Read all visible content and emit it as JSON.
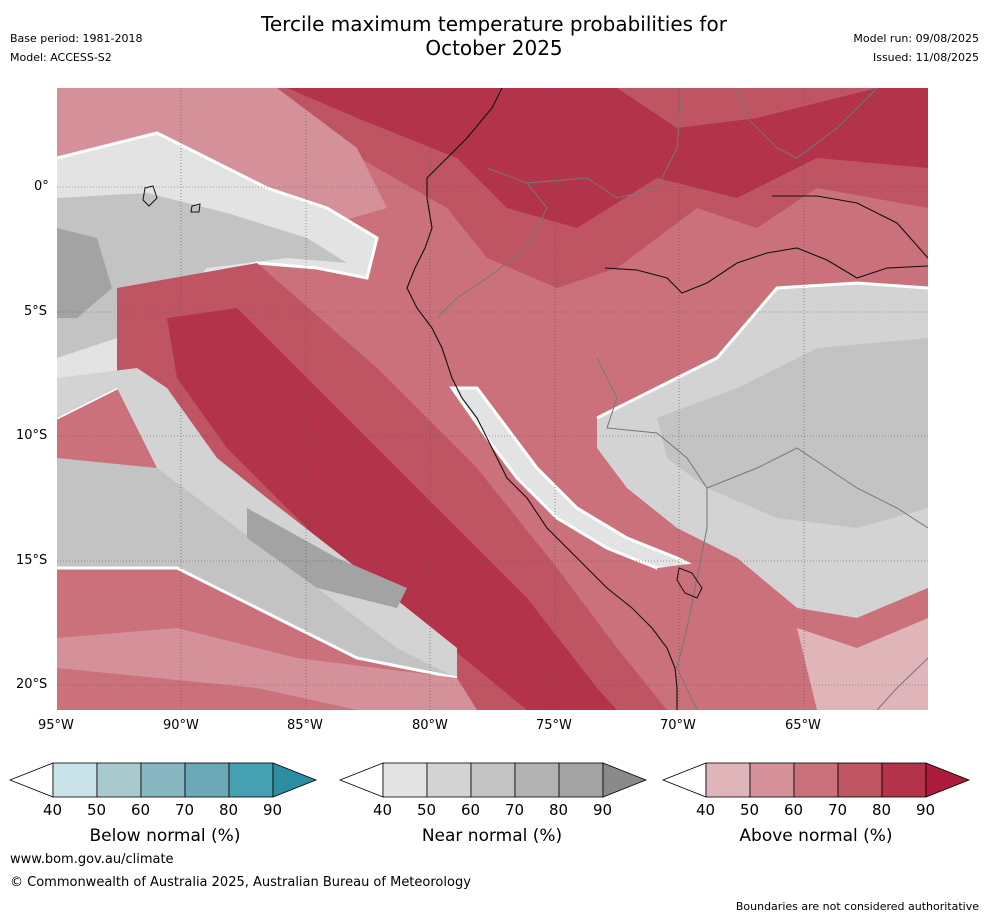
{
  "header": {
    "title_line1": "Tercile maximum temperature probabilities for",
    "title_line2": "October 2025",
    "base_period": "Base period: 1981-2018",
    "model": "Model: ACCESS-S2",
    "model_run": "Model run: 09/08/2025",
    "issued": "Issued: 11/08/2025"
  },
  "map": {
    "lon_ticks": [
      "95°W",
      "90°W",
      "85°W",
      "80°W",
      "75°W",
      "70°W",
      "65°W"
    ],
    "lat_ticks": [
      "0°",
      "5°S",
      "10°S",
      "15°S",
      "20°S"
    ],
    "lon_range": [
      -95,
      -60
    ],
    "lat_range": [
      -21,
      4
    ],
    "grid": true
  },
  "legends": [
    {
      "label": "Below normal (%)",
      "ticks": [
        "40",
        "50",
        "60",
        "70",
        "80",
        "90"
      ],
      "colors": [
        "#ffffff",
        "#cae3e8",
        "#a8c9ce",
        "#89b7c1",
        "#6aa9b5",
        "#45a0b1",
        "#2b8ea3"
      ]
    },
    {
      "label": "Near normal (%)",
      "ticks": [
        "40",
        "50",
        "60",
        "70",
        "80",
        "90"
      ],
      "colors": [
        "#ffffff",
        "#e3e3e3",
        "#d3d3d3",
        "#c3c3c3",
        "#b3b3b3",
        "#a3a3a3",
        "#8a8a8a"
      ]
    },
    {
      "label": "Above normal (%)",
      "ticks": [
        "40",
        "50",
        "60",
        "70",
        "80",
        "90"
      ],
      "colors": [
        "#ffffff",
        "#e0b5ba",
        "#d5919a",
        "#cb717c",
        "#bf5563",
        "#b3344a",
        "#ad1b3c"
      ]
    }
  ],
  "footer": {
    "website": "www.bom.gov.au/climate",
    "copyright": "© Commonwealth of Australia 2025, Australian Bureau of Meteorology",
    "disclaimer": "Boundaries are not considered authoritative"
  }
}
